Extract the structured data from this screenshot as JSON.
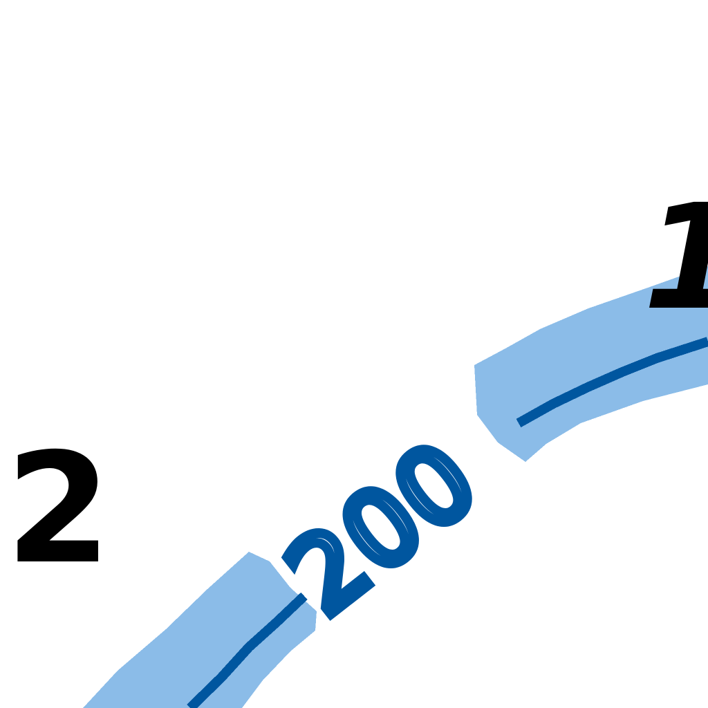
{
  "map": {
    "labels": {
      "route_number": "200",
      "area_left": "2",
      "area_right": "1"
    },
    "colors": {
      "background": "#ffffff",
      "route_casing": "#8bbce8",
      "route_line": "#00569f",
      "route_label": "#00569f",
      "area_number": "#000000"
    }
  }
}
